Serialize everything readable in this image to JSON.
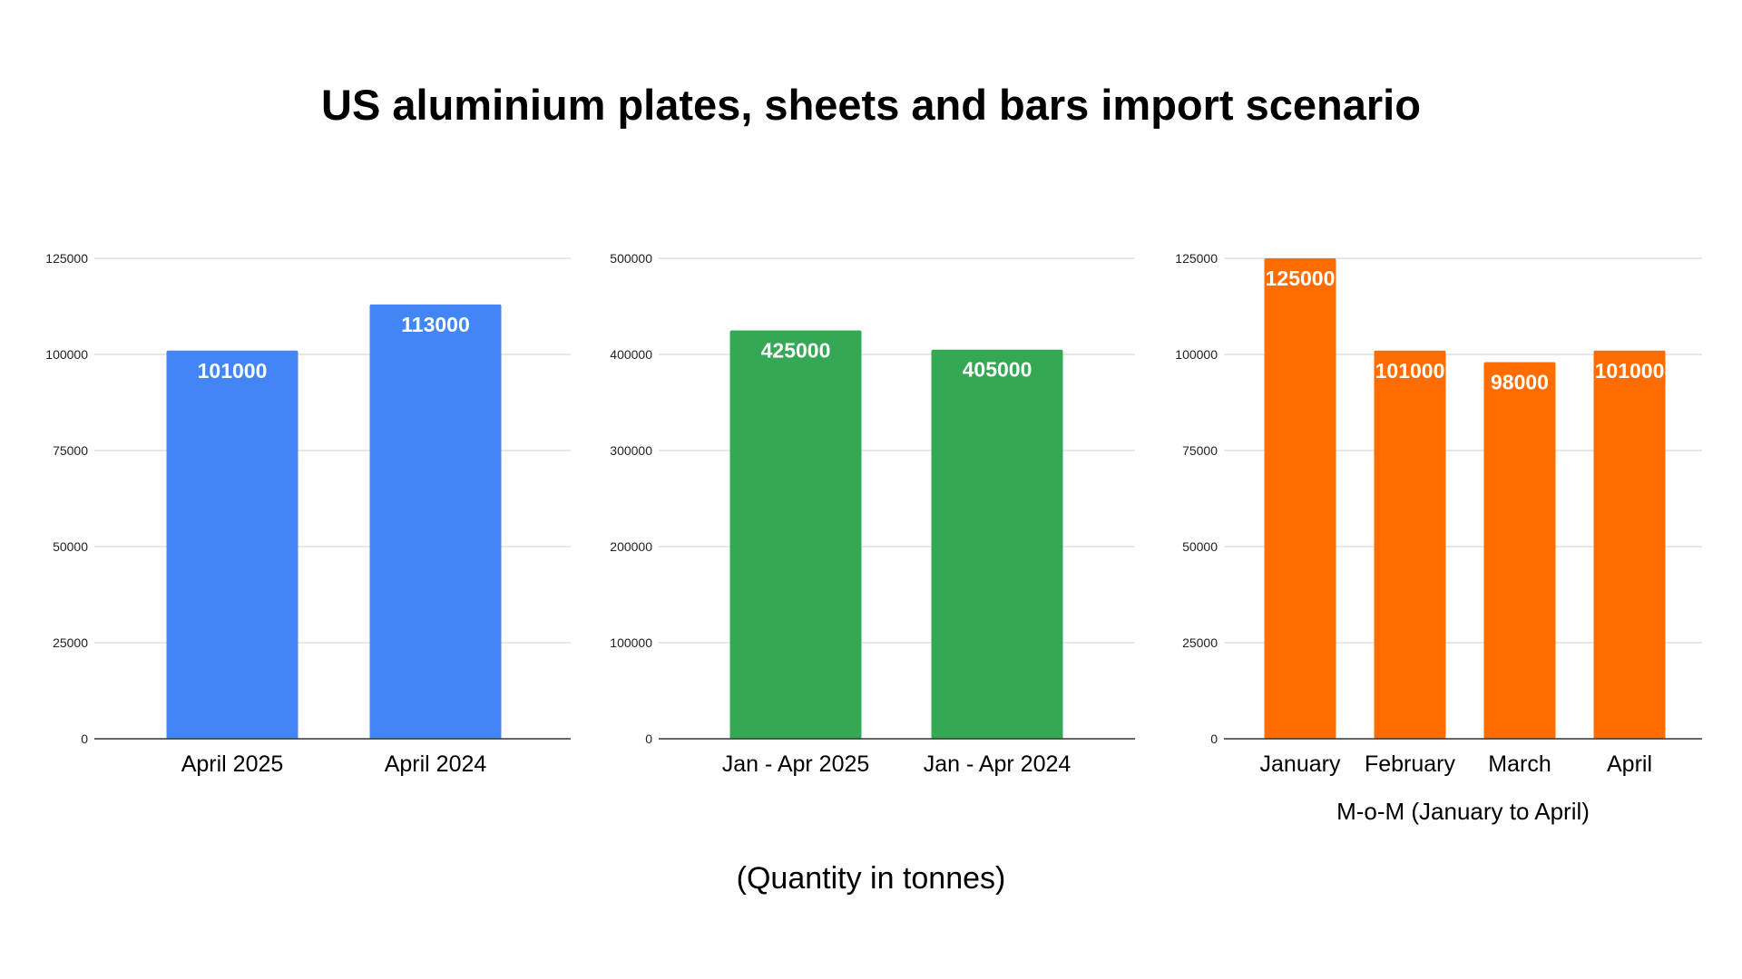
{
  "title": "US aluminium plates, sheets and bars import scenario",
  "footnote": "(Quantity in tonnes)",
  "chart_data": [
    {
      "type": "bar",
      "title": "",
      "categories": [
        "April 2025",
        "April 2024"
      ],
      "values": [
        101000,
        113000
      ],
      "ylim": [
        0,
        125000
      ],
      "yticks": [
        "0",
        "25000",
        "50000",
        "75000",
        "100000",
        "125000"
      ],
      "xlabel": "",
      "ylabel": "",
      "color": "#4285F4",
      "grid": true
    },
    {
      "type": "bar",
      "title": "",
      "categories": [
        "Jan - Apr 2025",
        "Jan - Apr 2024"
      ],
      "values": [
        425000,
        405000
      ],
      "ylim": [
        0,
        500000
      ],
      "yticks": [
        "0",
        "100000",
        "200000",
        "300000",
        "400000",
        "500000"
      ],
      "xlabel": "",
      "ylabel": "",
      "color": "#34A853",
      "grid": true
    },
    {
      "type": "bar",
      "title": "",
      "categories": [
        "January",
        "February",
        "March",
        "April"
      ],
      "values": [
        125000,
        101000,
        98000,
        101000
      ],
      "ylim": [
        0,
        125000
      ],
      "yticks": [
        "0",
        "25000",
        "50000",
        "75000",
        "100000",
        "125000"
      ],
      "xlabel": "M-o-M (January to April)",
      "ylabel": "",
      "color": "#FF6D01",
      "grid": true
    }
  ]
}
